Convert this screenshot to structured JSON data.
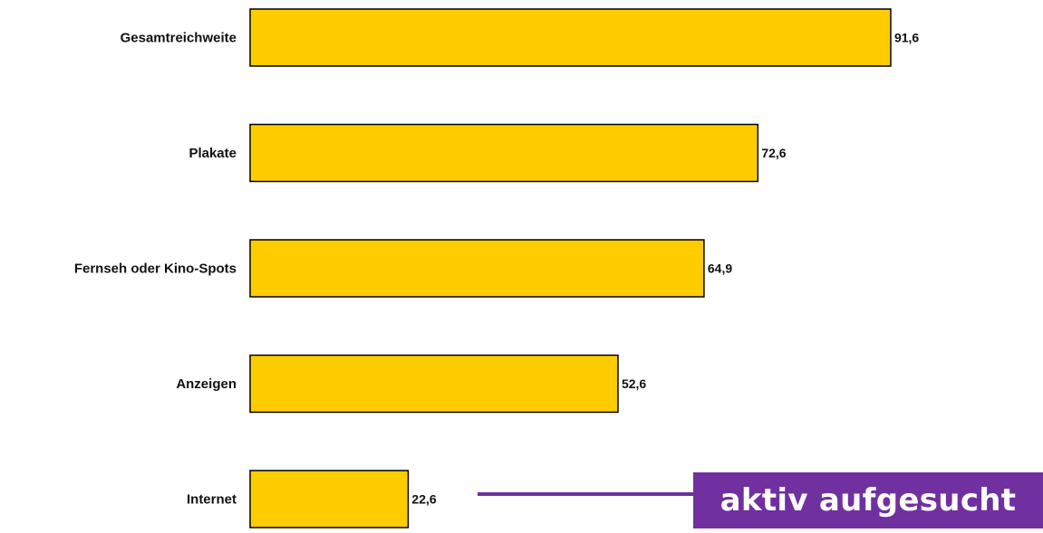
{
  "chart_data": {
    "type": "bar",
    "orientation": "horizontal",
    "categories": [
      "Gesamtreichweite",
      "Plakate",
      "Fernseh oder Kino-Spots",
      "Anzeigen",
      "Internet"
    ],
    "values": [
      91.6,
      72.6,
      64.9,
      52.6,
      22.6
    ],
    "value_labels": [
      "91,6",
      "72,6",
      "64,9",
      "52,6",
      "22,6"
    ],
    "xlim": [
      0,
      100
    ],
    "grid": false,
    "legend": "none",
    "annotation": {
      "text": "aktiv aufgesucht",
      "target_category": "Internet"
    }
  },
  "colors": {
    "bar_fill": "#FFCC00",
    "bar_stroke": "#000000",
    "annotation_bg": "#7030A0",
    "annotation_text": "#FFFFFF",
    "text": "#111111"
  }
}
